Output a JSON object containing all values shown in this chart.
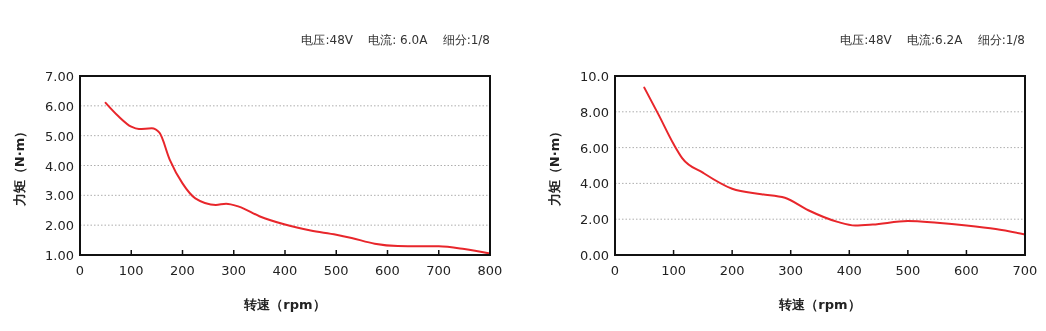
{
  "chart_data": [
    {
      "type": "line",
      "subtitle": "电压:48V    电流: 6.0A    细分:1/8",
      "xlabel": "转速（rpm）",
      "ylabel": "力矩（N·m）",
      "x": [
        50,
        75,
        100,
        115,
        140,
        155,
        175,
        200,
        225,
        265,
        285,
        310,
        350,
        400,
        450,
        500,
        530,
        575,
        620,
        660,
        700,
        750,
        800
      ],
      "series": [
        {
          "color": "#e8262b",
          "values": [
            6.1,
            5.65,
            5.3,
            5.22,
            5.25,
            5.1,
            4.2,
            3.4,
            2.9,
            2.68,
            2.72,
            2.62,
            2.3,
            2.02,
            1.82,
            1.68,
            1.57,
            1.38,
            1.3,
            1.29,
            1.29,
            1.2,
            1.05
          ]
        }
      ],
      "xlim": [
        0,
        800
      ],
      "xticks": [
        0,
        100,
        200,
        300,
        400,
        500,
        600,
        700,
        800
      ],
      "ylim": [
        1,
        7
      ],
      "yticks": [
        {
          "value": 1,
          "label": "1.00"
        },
        {
          "value": 2,
          "label": "2.00"
        },
        {
          "value": 3,
          "label": "3.00"
        },
        {
          "value": 4,
          "label": "4.00"
        },
        {
          "value": 5,
          "label": "5.00"
        },
        {
          "value": 6,
          "label": "6.00"
        },
        {
          "value": 7,
          "label": "7.00"
        }
      ],
      "grid": "y",
      "marker": "none",
      "line_style": "solid"
    },
    {
      "type": "line",
      "subtitle": "电压:48V    电流:6.2A    细分:1/8",
      "xlabel": "转速（rpm）",
      "ylabel": "力矩（N·m）",
      "x": [
        50,
        75,
        100,
        115,
        150,
        200,
        250,
        290,
        330,
        380,
        410,
        440,
        500,
        550,
        600,
        650,
        700
      ],
      "series": [
        {
          "color": "#e8262b",
          "values": [
            9.35,
            7.8,
            6.2,
            5.4,
            4.6,
            3.7,
            3.4,
            3.2,
            2.5,
            1.85,
            1.65,
            1.7,
            1.9,
            1.8,
            1.65,
            1.45,
            1.15
          ]
        }
      ],
      "xlim": [
        0,
        700
      ],
      "xticks": [
        0,
        100,
        200,
        300,
        400,
        500,
        600,
        700
      ],
      "ylim": [
        0,
        10
      ],
      "yticks": [
        {
          "value": 0,
          "label": "0.00"
        },
        {
          "value": 2,
          "label": "2.00"
        },
        {
          "value": 4,
          "label": "4.00"
        },
        {
          "value": 6,
          "label": "6.00"
        },
        {
          "value": 8,
          "label": "8.00"
        },
        {
          "value": 10,
          "label": "10.0"
        }
      ],
      "grid": "y",
      "marker": "none",
      "line_style": "solid"
    }
  ]
}
